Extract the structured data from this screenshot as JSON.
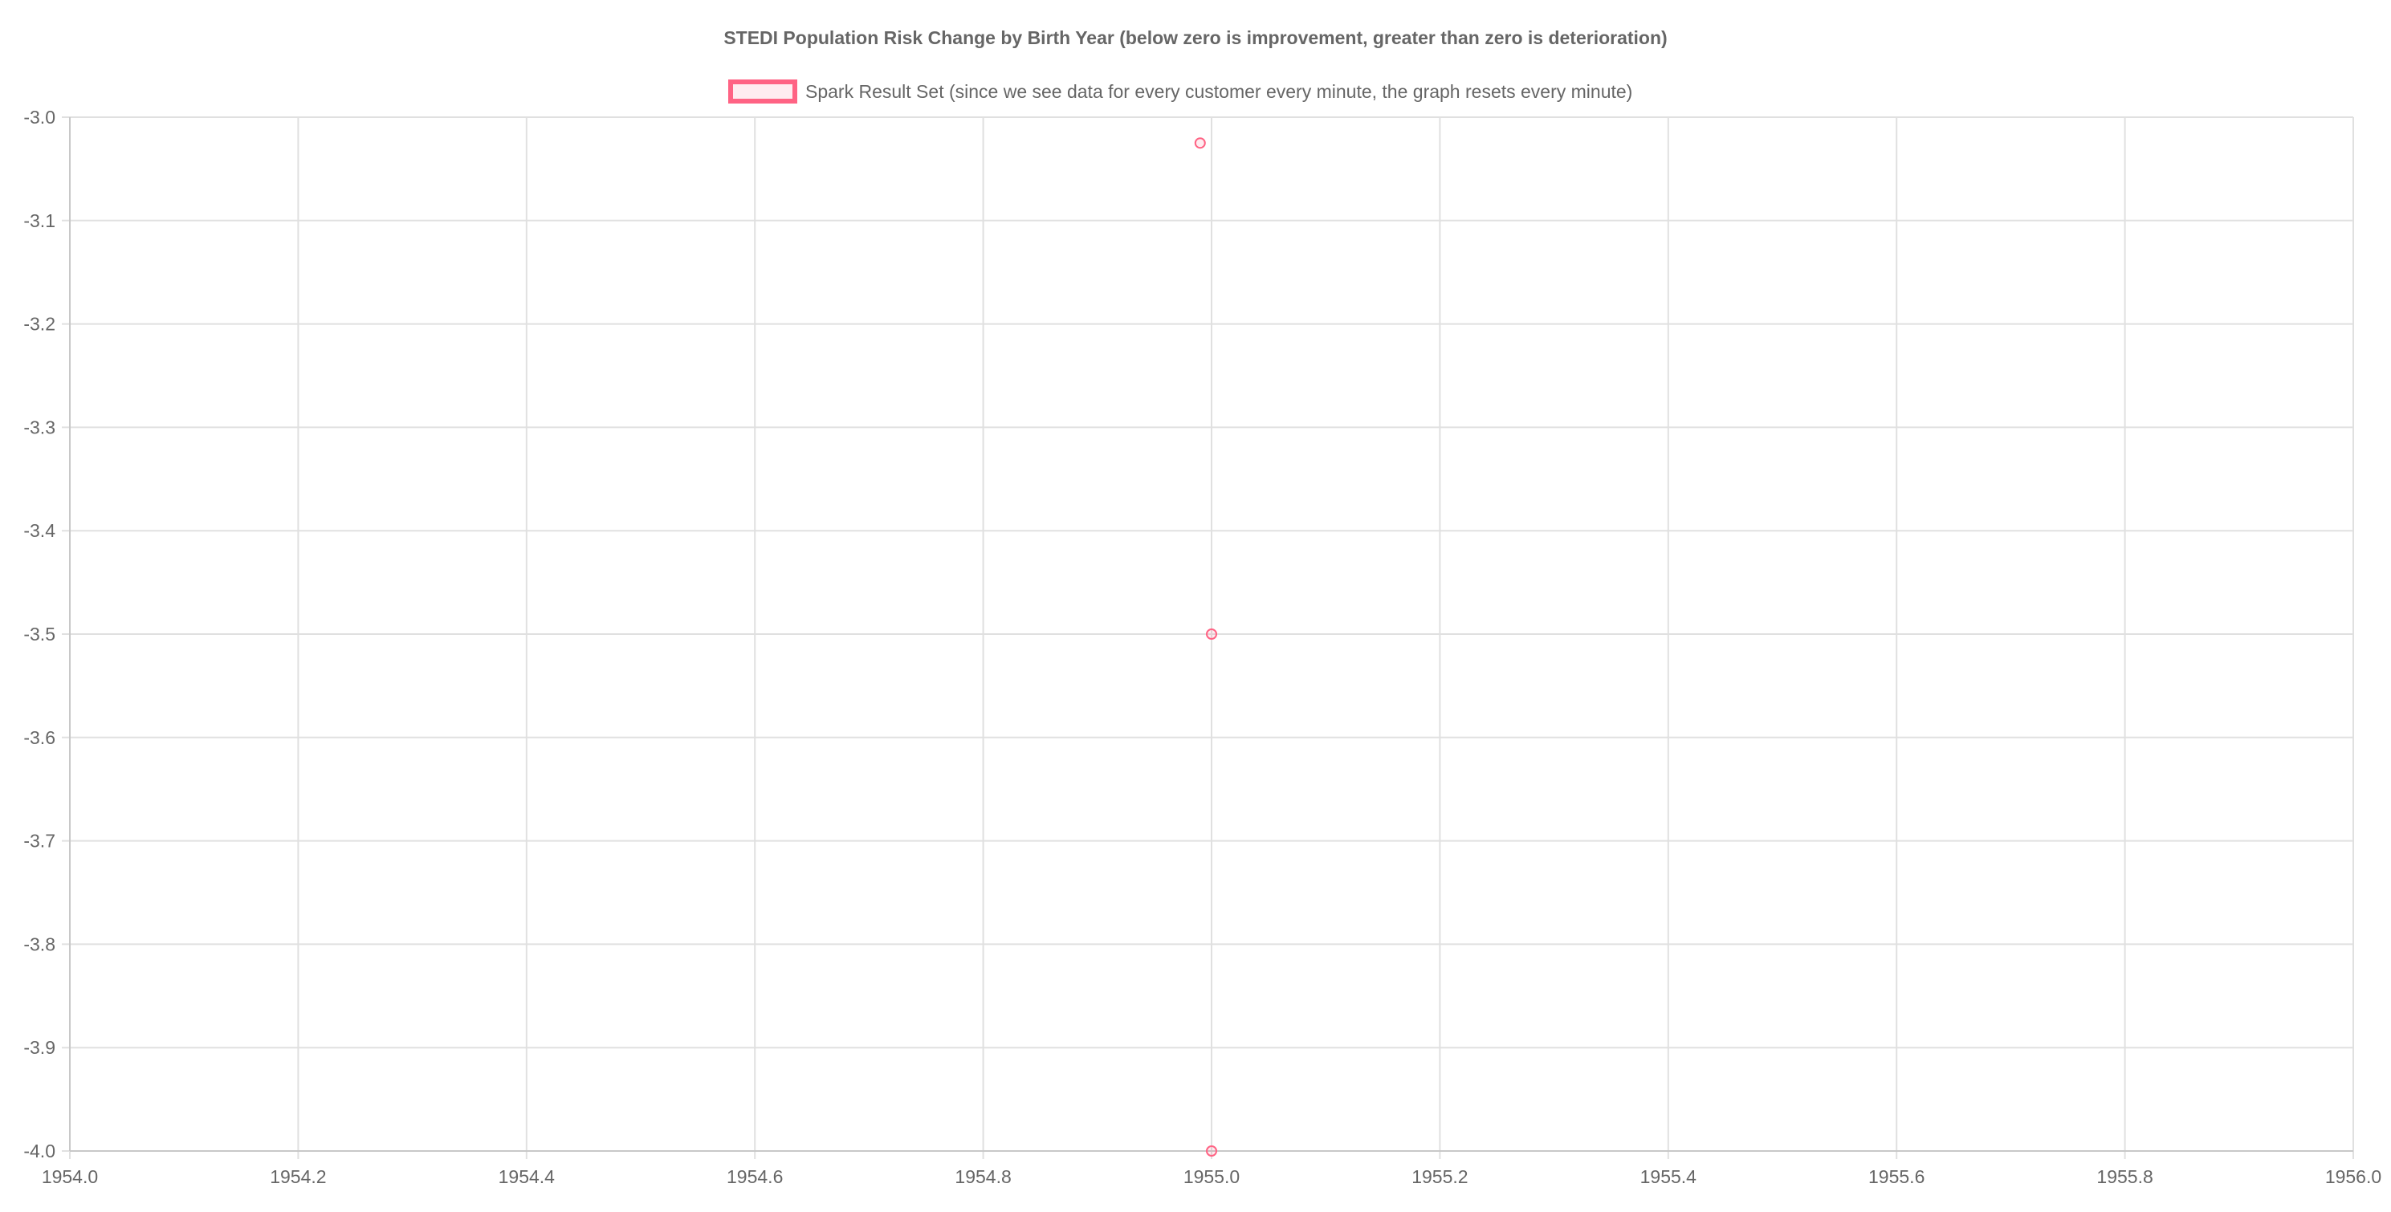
{
  "chart_data": {
    "type": "scatter",
    "title": "STEDI Population Risk Change by Birth Year (below zero is improvement, greater than zero is deterioration)",
    "legend_position": "top-center",
    "series": [
      {
        "name": "Spark Result Set (since we see data for every customer every minute, the graph resets every minute)",
        "color": "#ff6384",
        "points": [
          {
            "x": 1954.99,
            "y": -3.025
          },
          {
            "x": 1955.0,
            "y": -3.5
          },
          {
            "x": 1955.0,
            "y": -4.0
          }
        ]
      }
    ],
    "xlim": [
      1954.0,
      1956.0
    ],
    "ylim": [
      -4.0,
      -3.0
    ],
    "x_ticks": [
      "1954.0",
      "1954.2",
      "1954.4",
      "1954.6",
      "1954.8",
      "1955.0",
      "1955.2",
      "1955.4",
      "1955.6",
      "1955.8",
      "1956.0"
    ],
    "y_ticks": [
      "-3.0",
      "-3.1",
      "-3.2",
      "-3.3",
      "-3.4",
      "-3.5",
      "-3.6",
      "-3.7",
      "-3.8",
      "-3.9",
      "-4.0"
    ],
    "grid": true,
    "xlabel": "",
    "ylabel": ""
  }
}
